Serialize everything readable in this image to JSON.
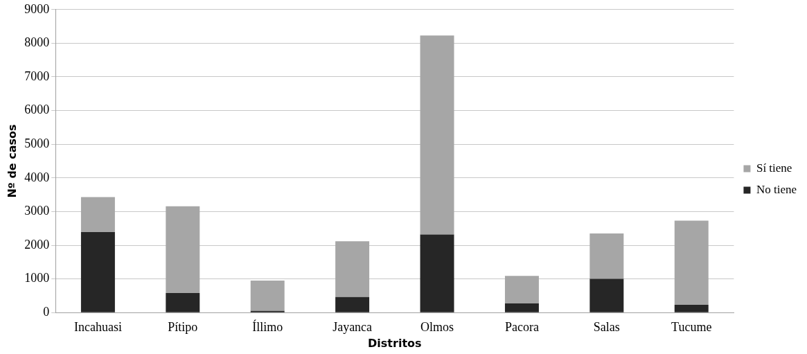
{
  "chart_data": {
    "type": "bar",
    "stacked": true,
    "xlabel": "Distritos",
    "ylabel": "Nº de casos",
    "categories": [
      "Incahuasi",
      "Pítipo",
      "Íllimo",
      "Jayanca",
      "Olmos",
      "Pacora",
      "Salas",
      "Tucume"
    ],
    "series": [
      {
        "name": "No tiene",
        "color": "#262626",
        "values": [
          2390,
          580,
          50,
          460,
          2320,
          270,
          1000,
          230
        ]
      },
      {
        "name": "Sí tiene",
        "color": "#a6a6a6",
        "values": [
          1040,
          2575,
          900,
          1660,
          5910,
          820,
          1350,
          2500
        ]
      }
    ],
    "ylim": [
      0,
      9000
    ],
    "yticks": [
      0,
      1000,
      2000,
      3000,
      4000,
      5000,
      6000,
      7000,
      8000,
      9000
    ],
    "grid": "y",
    "legend": "right"
  }
}
